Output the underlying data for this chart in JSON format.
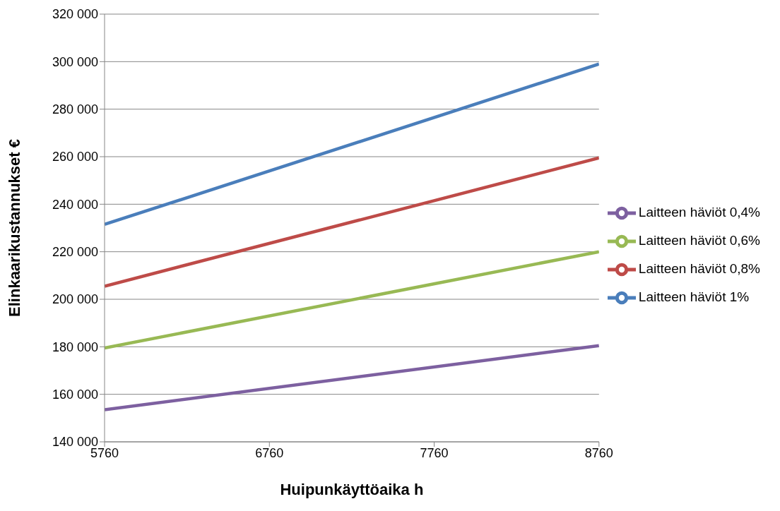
{
  "chart_data": {
    "type": "line",
    "xlabel": "Huipunkäyttöaika h",
    "ylabel": "Elinkaarikustannukset €",
    "x": [
      5760,
      8760
    ],
    "series": [
      {
        "name": "Laitteen häviöt 1%",
        "color": "#4a7ebb",
        "values": [
          231500,
          299000
        ]
      },
      {
        "name": "Laitteen häviöt 0,8%",
        "color": "#be4b48",
        "values": [
          205500,
          259500
        ]
      },
      {
        "name": "Laitteen häviöt 0,6%",
        "color": "#98b954",
        "values": [
          179500,
          220000
        ]
      },
      {
        "name": "Laitteen häviöt 0,4%",
        "color": "#7d60a0",
        "values": [
          153500,
          180500
        ]
      }
    ],
    "xlim": [
      5760,
      8760
    ],
    "xticks": [
      5760,
      6760,
      7760,
      8760
    ],
    "ylim": [
      140000,
      320000
    ],
    "yticks": [
      {
        "value": 140000,
        "label": "140 000"
      },
      {
        "value": 160000,
        "label": "160 000"
      },
      {
        "value": 180000,
        "label": "180 000"
      },
      {
        "value": 200000,
        "label": "200 000"
      },
      {
        "value": 220000,
        "label": "220 000"
      },
      {
        "value": 240000,
        "label": "240 000"
      },
      {
        "value": 260000,
        "label": "260 000"
      },
      {
        "value": 280000,
        "label": "280 000"
      },
      {
        "value": 300000,
        "label": "300 000"
      },
      {
        "value": 320000,
        "label": "320 000"
      }
    ],
    "grid": "y",
    "legend": "right",
    "marker": "none",
    "line_style": "solid"
  }
}
